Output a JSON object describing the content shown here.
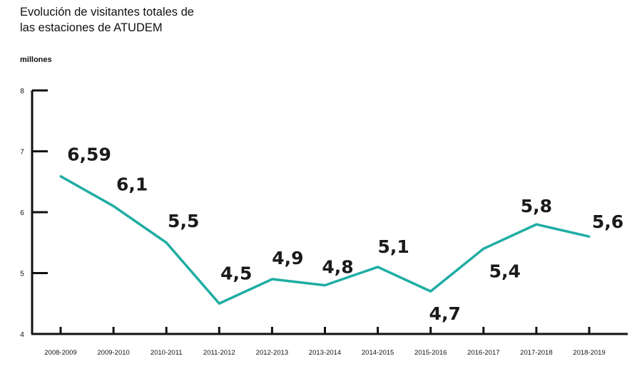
{
  "chart_data": {
    "type": "line",
    "title": "Evolución de visitantes totales de las estaciones de ATUDEM",
    "title_lines": [
      "Evolución de visitantes totales de",
      "las estaciones de ATUDEM"
    ],
    "ylabel": "millones",
    "xlabel": "",
    "ylim": [
      4,
      8
    ],
    "yticks": [
      4,
      5,
      6,
      7,
      8
    ],
    "categories": [
      "2008-2009",
      "2009-2010",
      "2010-2011",
      "2011-2012",
      "2012-2013",
      "2013-2014",
      "2014-2015",
      "2015-2016",
      "2016-2017",
      "2017-2018",
      "2018-2019"
    ],
    "values": [
      6.59,
      6.1,
      5.5,
      4.5,
      4.9,
      4.8,
      5.1,
      4.7,
      5.4,
      5.8,
      5.6
    ],
    "data_labels": [
      "6,59",
      "6,1",
      "5,5",
      "4,5",
      "4,9",
      "4,8",
      "5,1",
      "4,7",
      "5,4",
      "5,8",
      "5,6"
    ],
    "grid": false,
    "line_color": "#1fada3"
  }
}
